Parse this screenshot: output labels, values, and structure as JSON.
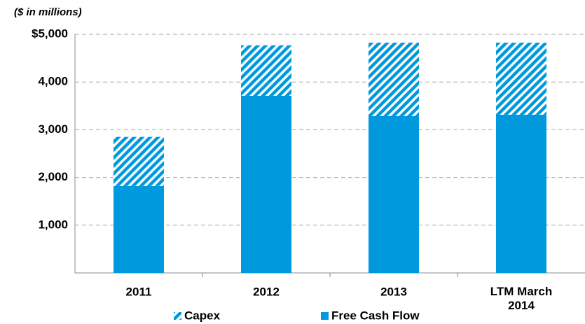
{
  "chart_data": {
    "type": "stacked_bar",
    "subtitle": "($ in millions)",
    "categories": [
      "2011",
      "2012",
      "2013",
      "LTM March 2014"
    ],
    "series": [
      {
        "name": "Free Cash Flow",
        "color": "#0099dd",
        "pattern": "solid",
        "values": [
          1820,
          3710,
          3285,
          3315
        ]
      },
      {
        "name": "Capex",
        "color": "#0099dd",
        "pattern": "hatch",
        "values": [
          1030,
          1060,
          1540,
          1510
        ]
      }
    ],
    "ylim": [
      0,
      5000
    ],
    "yticks": [
      {
        "value": 1000,
        "label": "1,000"
      },
      {
        "value": 2000,
        "label": "2,000"
      },
      {
        "value": 3000,
        "label": "3,000"
      },
      {
        "value": 4000,
        "label": "4,000"
      },
      {
        "value": 5000,
        "label": "$5,000"
      }
    ],
    "grid": true,
    "legend": "bottom"
  }
}
